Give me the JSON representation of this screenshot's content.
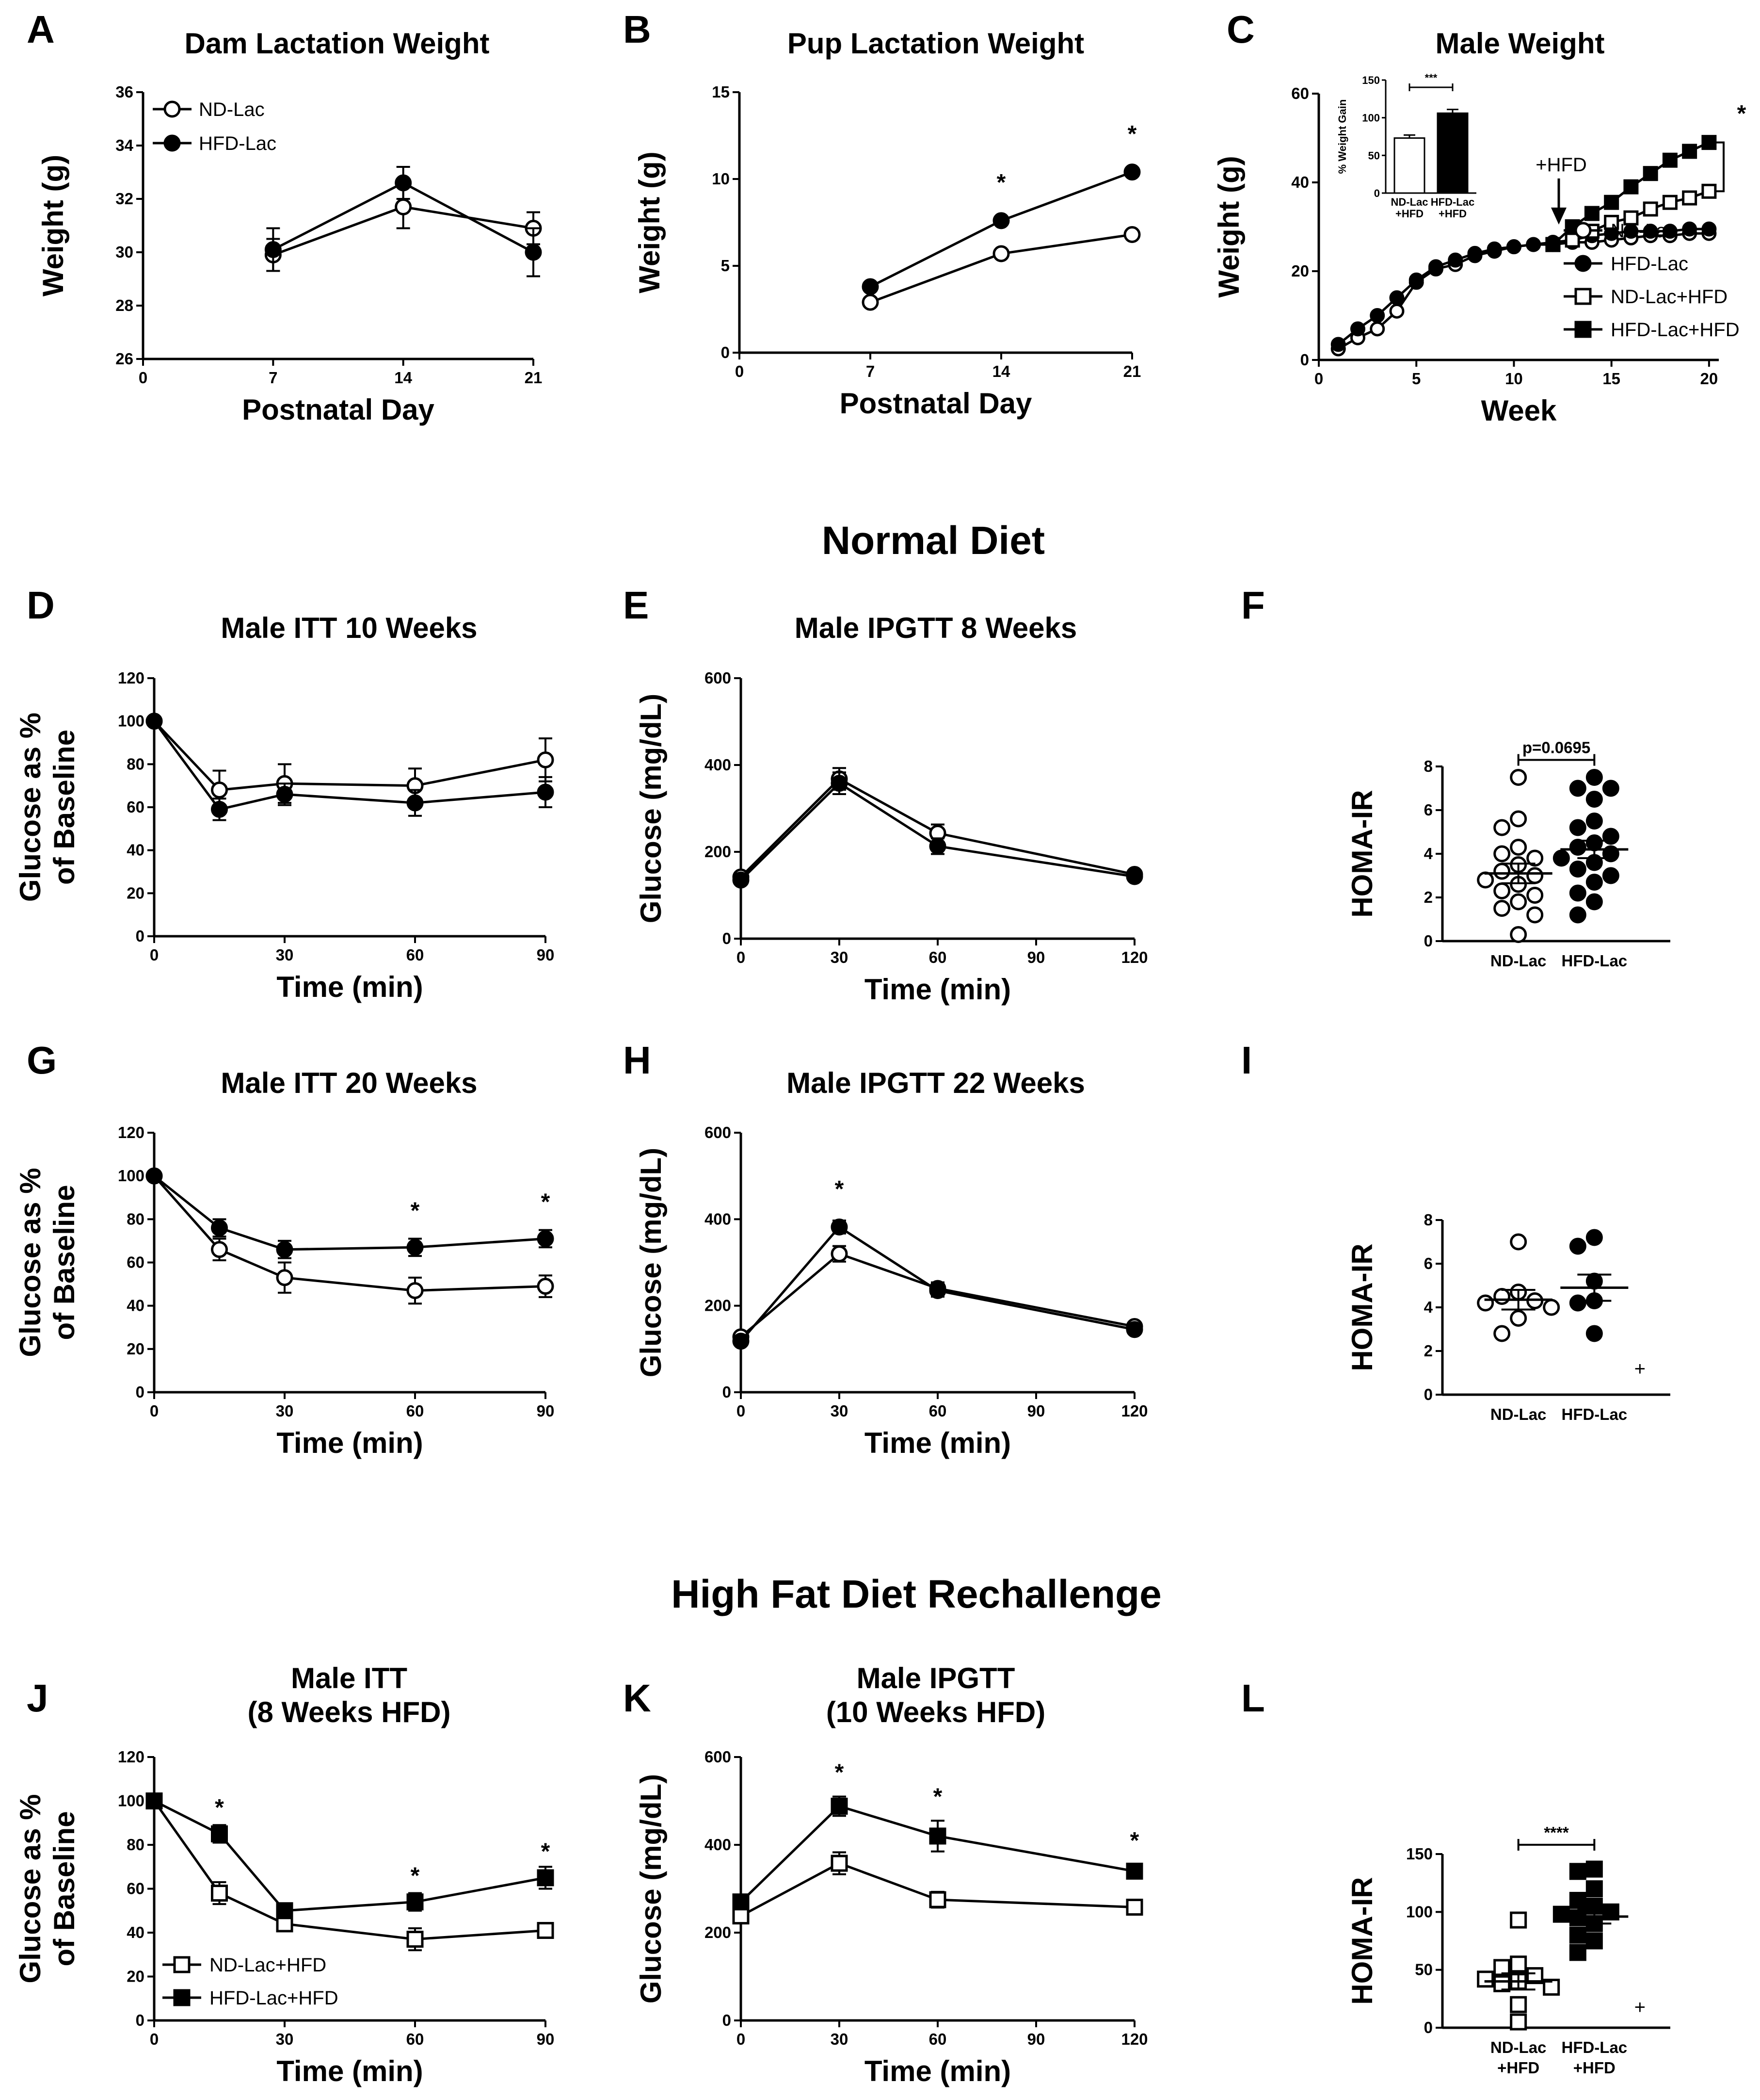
{
  "sections": {
    "normal": "Normal Diet",
    "rechallenge": "High Fat Diet Rechallenge"
  },
  "symbols": {
    "star": "*",
    "plus": "+",
    "arrow_label": "+HFD"
  },
  "chart_data": [
    {
      "id": "A",
      "panel_label": "A",
      "type": "line",
      "title": "Dam Lactation Weight",
      "xlabel": "Postnatal Day",
      "ylabel": "Weight (g)",
      "xlim": [
        0,
        21
      ],
      "ylim": [
        26,
        36
      ],
      "xticks": [
        0,
        7,
        14,
        21
      ],
      "yticks": [
        26,
        28,
        30,
        32,
        34,
        36
      ],
      "legend": "top-left",
      "series": [
        {
          "name": "ND-Lac",
          "marker": "circle-open",
          "x": [
            7,
            14,
            21
          ],
          "y": [
            29.9,
            31.7,
            30.9
          ],
          "err": [
            0.6,
            0.8,
            0.6
          ]
        },
        {
          "name": "HFD-Lac",
          "marker": "circle-filled",
          "x": [
            7,
            14,
            21
          ],
          "y": [
            30.1,
            32.6,
            30.0
          ],
          "err": [
            0.8,
            0.6,
            0.9
          ]
        }
      ]
    },
    {
      "id": "B",
      "panel_label": "B",
      "type": "line",
      "title": "Pup Lactation Weight",
      "xlabel": "Postnatal Day",
      "ylabel": "Weight (g)",
      "xlim": [
        0,
        21
      ],
      "ylim": [
        0,
        15
      ],
      "xticks": [
        0,
        7,
        14,
        21
      ],
      "yticks": [
        0,
        5,
        10,
        15
      ],
      "series": [
        {
          "name": "ND-Lac",
          "marker": "circle-open",
          "x": [
            7,
            14,
            21
          ],
          "y": [
            2.9,
            5.7,
            6.8
          ]
        },
        {
          "name": "HFD-Lac",
          "marker": "circle-filled",
          "x": [
            7,
            14,
            21
          ],
          "y": [
            3.8,
            7.6,
            10.4
          ]
        }
      ],
      "stars": [
        {
          "x": 14,
          "y": 9.8
        },
        {
          "x": 21,
          "y": 12.6
        }
      ]
    },
    {
      "id": "C",
      "panel_label": "C",
      "type": "line",
      "title": "Male Weight",
      "xlabel": "Week",
      "ylabel": "Weight (g)",
      "xlim": [
        0,
        20.5
      ],
      "ylim": [
        0,
        60
      ],
      "xticks": [
        0,
        5,
        10,
        15,
        20
      ],
      "yticks": [
        0,
        20,
        40,
        60
      ],
      "legend": "bottom-right",
      "series": [
        {
          "name": "ND-Lac",
          "marker": "circle-open",
          "x": [
            1,
            2,
            3,
            4,
            5,
            6,
            7,
            8,
            9,
            10,
            11,
            12,
            13,
            14,
            15,
            16,
            17,
            18,
            19,
            20
          ],
          "y": [
            2.5,
            5,
            7,
            11,
            17.5,
            20.5,
            21.5,
            23.5,
            24.5,
            25.5,
            26,
            26,
            26.5,
            26.5,
            27,
            27.5,
            28,
            28,
            28.5,
            28.5
          ]
        },
        {
          "name": "HFD-Lac",
          "marker": "circle-filled",
          "x": [
            1,
            2,
            3,
            4,
            5,
            6,
            7,
            8,
            9,
            10,
            11,
            12,
            13,
            14,
            15,
            16,
            17,
            18,
            19,
            20
          ],
          "y": [
            3.5,
            7,
            10,
            14,
            18,
            21,
            22.5,
            24,
            25,
            25.5,
            26,
            26.5,
            27,
            28,
            28.5,
            29,
            29,
            29,
            29.5,
            29.5
          ]
        },
        {
          "name": "ND-Lac+HFD",
          "marker": "square-open",
          "x": [
            12,
            13,
            14,
            15,
            16,
            17,
            18,
            19,
            20
          ],
          "y": [
            26,
            27,
            29,
            31,
            32,
            34,
            35.5,
            36.5,
            38
          ]
        },
        {
          "name": "HFD-Lac+HFD",
          "marker": "square-filled",
          "x": [
            12,
            13,
            14,
            15,
            16,
            17,
            18,
            19,
            20
          ],
          "y": [
            26,
            30,
            33,
            35.5,
            39,
            42,
            45,
            47,
            49
          ]
        }
      ],
      "arrow_at": {
        "x": 12.3,
        "y": 30.5
      },
      "inset": {
        "type": "bar",
        "ylabel": "% Weight Gain",
        "ylim": [
          0,
          150
        ],
        "yticks": [
          0,
          50,
          100,
          150
        ],
        "categories": [
          "ND-Lac\n+HFD",
          "HFD-Lac\n+HFD"
        ],
        "cat_lines": [
          [
            "ND-Lac",
            "+HFD"
          ],
          [
            "HFD-Lac",
            "+HFD"
          ]
        ],
        "values": [
          73,
          106
        ],
        "err": [
          4,
          5
        ],
        "fills": [
          "open",
          "filled"
        ],
        "sig": "***"
      }
    },
    {
      "id": "D",
      "panel_label": "D",
      "type": "line",
      "title": "Male ITT 10 Weeks",
      "xlabel": "Time (min)",
      "ylabel": [
        "Glucose as %",
        "of Baseline"
      ],
      "xlim": [
        0,
        90
      ],
      "ylim": [
        0,
        120
      ],
      "xticks": [
        0,
        30,
        60,
        90
      ],
      "yticks": [
        0,
        20,
        40,
        60,
        80,
        100,
        120
      ],
      "series": [
        {
          "name": "ND-Lac",
          "marker": "circle-open",
          "x": [
            0,
            15,
            30,
            60,
            90
          ],
          "y": [
            100,
            68,
            71,
            70,
            82
          ],
          "err": [
            0,
            9,
            9,
            8,
            10
          ]
        },
        {
          "name": "HFD-Lac",
          "marker": "circle-filled",
          "x": [
            0,
            15,
            30,
            60,
            90
          ],
          "y": [
            100,
            59,
            66,
            62,
            67
          ],
          "err": [
            0,
            5,
            5,
            6,
            7
          ]
        }
      ]
    },
    {
      "id": "E",
      "panel_label": "E",
      "type": "line",
      "title": "Male IPGTT 8 Weeks",
      "xlabel": "Time (min)",
      "ylabel": "Glucose (mg/dL)",
      "xlim": [
        0,
        120
      ],
      "ylim": [
        0,
        600
      ],
      "xticks": [
        0,
        30,
        60,
        90,
        120
      ],
      "yticks": [
        0,
        200,
        400,
        600
      ],
      "series": [
        {
          "name": "ND-Lac",
          "marker": "circle-open",
          "x": [
            0,
            30,
            60,
            120
          ],
          "y": [
            142,
            368,
            243,
            148
          ],
          "err": [
            10,
            25,
            20,
            8
          ]
        },
        {
          "name": "HFD-Lac",
          "marker": "circle-filled",
          "x": [
            0,
            30,
            60,
            120
          ],
          "y": [
            135,
            358,
            213,
            143
          ],
          "err": [
            8,
            25,
            18,
            8
          ]
        }
      ]
    },
    {
      "id": "F",
      "panel_label": "F",
      "type": "scatter",
      "title": "",
      "xlabel": "",
      "ylabel": "HOMA-IR",
      "ylim": [
        0,
        8
      ],
      "yticks": [
        0,
        2,
        4,
        6,
        8
      ],
      "categories": [
        "ND-Lac",
        "HFD-Lac"
      ],
      "groups": [
        {
          "name": "ND-Lac",
          "marker": "circle-open",
          "mean": 3.1,
          "sem": 0.45,
          "values": [
            7.5,
            5.6,
            5.2,
            4.3,
            4.0,
            3.8,
            3.5,
            3.2,
            3.0,
            2.8,
            2.6,
            2.3,
            2.1,
            1.8,
            1.5,
            1.2,
            0.3
          ]
        },
        {
          "name": "HFD-Lac",
          "marker": "circle-filled",
          "mean": 4.2,
          "sem": 0.4,
          "values": [
            7.5,
            7.0,
            7.0,
            6.5,
            5.5,
            5.2,
            4.8,
            4.5,
            4.3,
            4.0,
            3.8,
            3.6,
            3.3,
            3.0,
            2.7,
            2.2,
            1.8,
            1.2
          ]
        }
      ],
      "bracket": {
        "label": "p=0.0695",
        "y": 8.3
      }
    },
    {
      "id": "G",
      "panel_label": "G",
      "type": "line",
      "title": "Male ITT 20 Weeks",
      "xlabel": "Time (min)",
      "ylabel": [
        "Glucose as %",
        "of Baseline"
      ],
      "xlim": [
        0,
        90
      ],
      "ylim": [
        0,
        120
      ],
      "xticks": [
        0,
        30,
        60,
        90
      ],
      "yticks": [
        0,
        20,
        40,
        60,
        80,
        100,
        120
      ],
      "series": [
        {
          "name": "ND-Lac",
          "marker": "circle-open",
          "x": [
            0,
            15,
            30,
            60,
            90
          ],
          "y": [
            100,
            66,
            53,
            47,
            49
          ],
          "err": [
            0,
            5,
            7,
            6,
            5
          ]
        },
        {
          "name": "HFD-Lac",
          "marker": "circle-filled",
          "x": [
            0,
            15,
            30,
            60,
            90
          ],
          "y": [
            100,
            76,
            66,
            67,
            71
          ],
          "err": [
            0,
            4,
            4,
            4,
            4
          ]
        }
      ],
      "stars": [
        {
          "x": 60,
          "y": 84
        },
        {
          "x": 90,
          "y": 88
        }
      ]
    },
    {
      "id": "H",
      "panel_label": "H",
      "type": "line",
      "title": "Male IPGTT 22 Weeks",
      "xlabel": "Time (min)",
      "ylabel": "Glucose (mg/dL)",
      "xlim": [
        0,
        120
      ],
      "ylim": [
        0,
        600
      ],
      "xticks": [
        0,
        30,
        60,
        90,
        120
      ],
      "yticks": [
        0,
        200,
        400,
        600
      ],
      "series": [
        {
          "name": "ND-Lac",
          "marker": "circle-open",
          "x": [
            0,
            30,
            60,
            120
          ],
          "y": [
            128,
            320,
            240,
            152
          ],
          "err": [
            8,
            18,
            14,
            8
          ]
        },
        {
          "name": "HFD-Lac",
          "marker": "circle-filled",
          "x": [
            0,
            30,
            60,
            120
          ],
          "y": [
            118,
            382,
            235,
            145
          ],
          "err": [
            8,
            15,
            14,
            8
          ]
        }
      ],
      "stars": [
        {
          "x": 30,
          "y": 470
        }
      ]
    },
    {
      "id": "I",
      "panel_label": "I",
      "type": "scatter",
      "title": "",
      "xlabel": "",
      "ylabel": "HOMA-IR",
      "ylim": [
        0,
        8
      ],
      "yticks": [
        0,
        2,
        4,
        6,
        8
      ],
      "categories": [
        "ND-Lac",
        "HFD-Lac"
      ],
      "groups": [
        {
          "name": "ND-Lac",
          "marker": "circle-open",
          "mean": 4.35,
          "sem": 0.45,
          "values": [
            7.0,
            4.7,
            4.5,
            4.3,
            4.2,
            4.0,
            3.5,
            2.8
          ]
        },
        {
          "name": "HFD-Lac",
          "marker": "circle-filled",
          "mean": 4.9,
          "sem": 0.6,
          "values": [
            7.2,
            6.8,
            5.2,
            4.3,
            4.2,
            2.8
          ]
        }
      ],
      "plus_at": {
        "x": 2.6,
        "y": 1.2
      }
    },
    {
      "id": "J",
      "panel_label": "J",
      "type": "line",
      "title": [
        "Male ITT",
        "(8 Weeks HFD)"
      ],
      "xlabel": "Time (min)",
      "ylabel": [
        "Glucose as %",
        "of Baseline"
      ],
      "xlim": [
        0,
        90
      ],
      "ylim": [
        0,
        120
      ],
      "xticks": [
        0,
        30,
        60,
        90
      ],
      "yticks": [
        0,
        20,
        40,
        60,
        80,
        100,
        120
      ],
      "legend": "bottom-left",
      "series": [
        {
          "name": "ND-Lac+HFD",
          "marker": "square-open",
          "x": [
            0,
            15,
            30,
            60,
            90
          ],
          "y": [
            100,
            58,
            44,
            37,
            41
          ],
          "err": [
            0,
            5,
            3,
            5,
            3
          ]
        },
        {
          "name": "HFD-Lac+HFD",
          "marker": "square-filled",
          "x": [
            0,
            15,
            30,
            60,
            90
          ],
          "y": [
            100,
            85,
            50,
            54,
            65
          ],
          "err": [
            0,
            4,
            3,
            4,
            5
          ]
        }
      ],
      "stars": [
        {
          "x": 15,
          "y": 97
        },
        {
          "x": 60,
          "y": 66
        },
        {
          "x": 90,
          "y": 77
        }
      ]
    },
    {
      "id": "K",
      "panel_label": "K",
      "type": "line",
      "title": [
        "Male IPGTT",
        "(10 Weeks HFD)"
      ],
      "xlabel": "Time (min)",
      "ylabel": "Glucose (mg/dL)",
      "xlim": [
        0,
        120
      ],
      "ylim": [
        0,
        600
      ],
      "xticks": [
        0,
        30,
        60,
        90,
        120
      ],
      "yticks": [
        0,
        200,
        400,
        600
      ],
      "series": [
        {
          "name": "ND-Lac+HFD",
          "marker": "square-open",
          "x": [
            0,
            30,
            60,
            120
          ],
          "y": [
            238,
            358,
            275,
            258
          ],
          "err": [
            12,
            25,
            18,
            10
          ]
        },
        {
          "name": "HFD-Lac+HFD",
          "marker": "square-filled",
          "x": [
            0,
            30,
            60,
            120
          ],
          "y": [
            270,
            488,
            420,
            340
          ],
          "err": [
            12,
            22,
            35,
            15
          ]
        }
      ],
      "stars": [
        {
          "x": 30,
          "y": 565
        },
        {
          "x": 60,
          "y": 510
        },
        {
          "x": 120,
          "y": 410
        }
      ]
    },
    {
      "id": "L",
      "panel_label": "L",
      "type": "scatter",
      "title": "",
      "xlabel": "",
      "ylabel": "HOMA-IR",
      "ylim": [
        0,
        150
      ],
      "yticks": [
        0,
        50,
        100,
        150
      ],
      "categories": [
        [
          "ND-Lac",
          "+HFD"
        ],
        [
          "HFD-Lac",
          "+HFD"
        ]
      ],
      "groups": [
        {
          "name": "ND-Lac+HFD",
          "marker": "square-open",
          "mean": 40,
          "sem": 7,
          "values": [
            93,
            55,
            52,
            45,
            42,
            40,
            38,
            35,
            20,
            5
          ]
        },
        {
          "name": "HFD-Lac+HFD",
          "marker": "square-filled",
          "mean": 96,
          "sem": 6,
          "values": [
            137,
            135,
            120,
            110,
            105,
            100,
            98,
            95,
            90,
            80,
            75,
            65
          ]
        }
      ],
      "bracket": {
        "label": "****",
        "y": 158
      },
      "plus_at": {
        "x": 2.6,
        "y": 18
      }
    }
  ]
}
